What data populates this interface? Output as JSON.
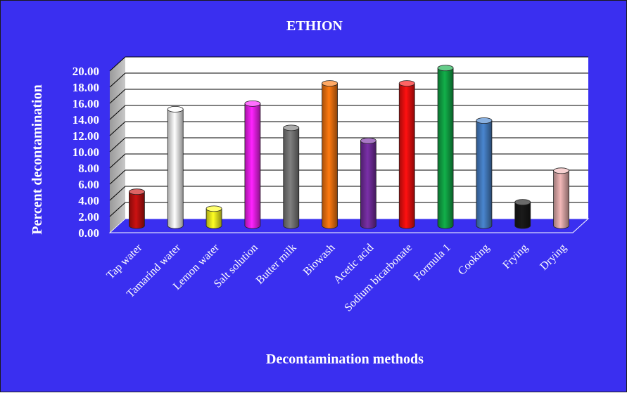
{
  "chart_data": {
    "type": "bar",
    "title": "ETHION",
    "xlabel": "Decontamination methods",
    "ylabel": "Percent decontamination",
    "ylim": [
      0,
      20
    ],
    "yticks": [
      "0.00",
      "2.00",
      "4.00",
      "6.00",
      "8.00",
      "10.00",
      "12.00",
      "14.00",
      "16.00",
      "18.00",
      "20.00"
    ],
    "grid": true,
    "categories": [
      "Tap water",
      "Tamarind water",
      "Lemon water",
      "Salt solution",
      "Butter milk",
      "Biowash",
      "Acetic acid",
      "Sodium bicarbonate",
      "Formula 1",
      "Cooking",
      "Frying",
      "Drying"
    ],
    "values": [
      4.2,
      14.4,
      2.1,
      15.1,
      12.1,
      17.6,
      10.5,
      17.6,
      19.5,
      13.0,
      2.9,
      6.8
    ],
    "colors": [
      "#cc1111",
      "#ffffff",
      "#ffff22",
      "#ff22ff",
      "#808080",
      "#ff7a10",
      "#7a30a8",
      "#ff1010",
      "#12b04a",
      "#4a86d0",
      "#1a1a1a",
      "#f2b8b8"
    ]
  }
}
